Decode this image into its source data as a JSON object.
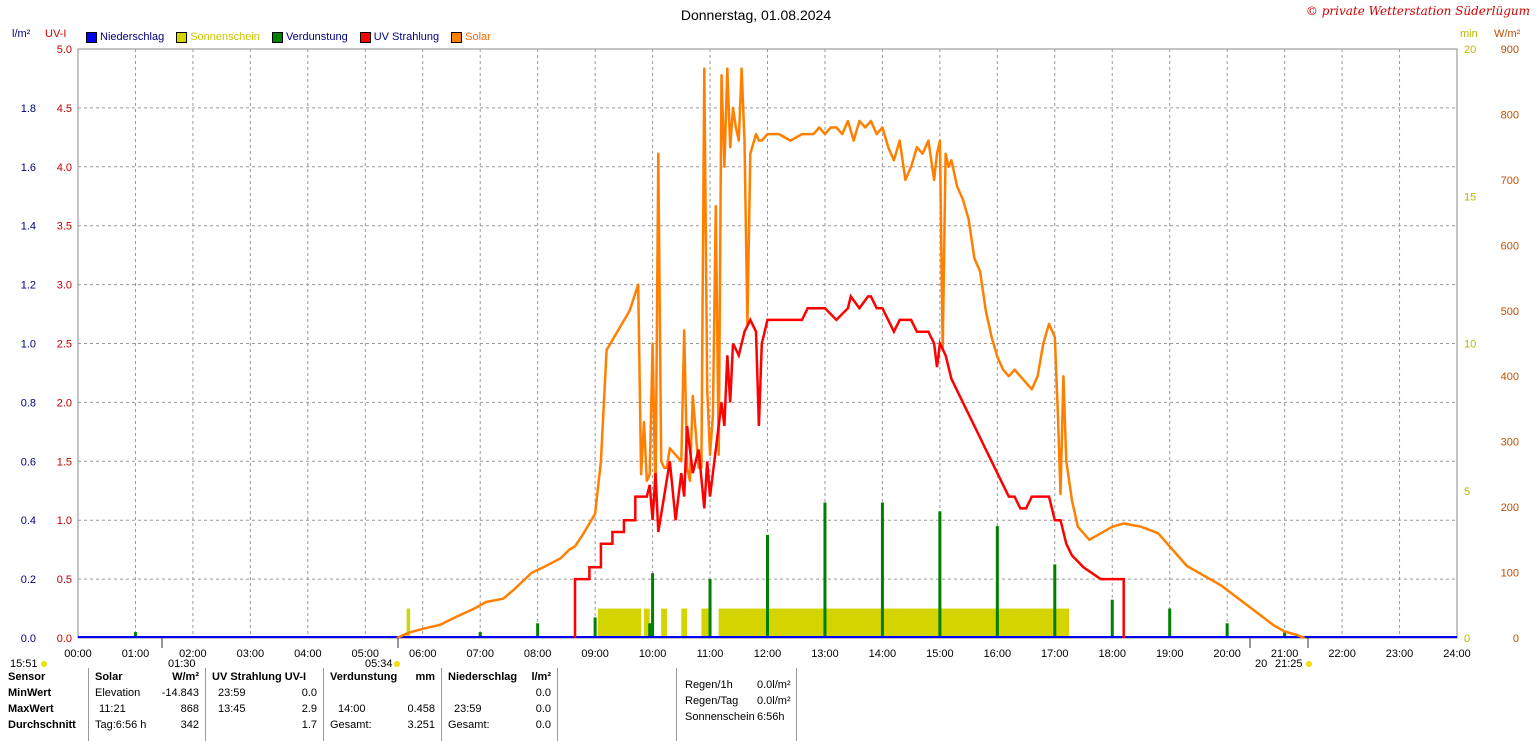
{
  "title": "Donnerstag, 01.08.2024",
  "copyright": "© private Wetterstation Süderlügum",
  "legend": [
    {
      "name": "Niederschlag",
      "color": "#0000ff",
      "text_color": "#000080"
    },
    {
      "name": "Sonnenschein",
      "color": "#d4d400",
      "text_color": "#c8c800"
    },
    {
      "name": "Verdunstung",
      "color": "#008000",
      "text_color": "#000080"
    },
    {
      "name": "UV Strahlung",
      "color": "#ff0000",
      "text_color": "#000080"
    },
    {
      "name": "Solar",
      "color": "#ff8000",
      "text_color": "#ff6600"
    }
  ],
  "axis_units": {
    "left1": "l/m²",
    "left2": "UV-I",
    "right1": "min",
    "right2": "W/m²"
  },
  "chart_data": {
    "type": "line",
    "x_unit": "hour of day",
    "xlim": [
      0,
      24
    ],
    "x_ticks": [
      "00:00",
      "01:00",
      "02:00",
      "03:00",
      "04:00",
      "05:00",
      "06:00",
      "07:00",
      "08:00",
      "09:00",
      "10:00",
      "11:00",
      "12:00",
      "13:00",
      "14:00",
      "15:00",
      "16:00",
      "17:00",
      "18:00",
      "19:00",
      "20:00",
      "21:00",
      "22:00",
      "23:00",
      "24:00"
    ],
    "y_axes": {
      "rain_lm2": {
        "ylim": [
          0,
          2.0
        ],
        "ticks": [
          "0.0",
          "0.2",
          "0.4",
          "0.6",
          "0.8",
          "1.0",
          "1.2",
          "1.4",
          "1.6",
          "1.8"
        ]
      },
      "uv_index": {
        "ylim": [
          0,
          5.0
        ],
        "ticks": [
          "0.0",
          "0.5",
          "1.0",
          "1.5",
          "2.0",
          "2.5",
          "3.0",
          "3.5",
          "4.0",
          "4.5",
          "5.0"
        ]
      },
      "sunshine_min": {
        "ylim": [
          0,
          20
        ],
        "ticks": [
          "0",
          "5",
          "10",
          "15",
          "20"
        ]
      },
      "solar_wm2": {
        "ylim": [
          0,
          900
        ],
        "ticks": [
          "0",
          "100",
          "200",
          "300",
          "400",
          "500",
          "600",
          "700",
          "800",
          "900"
        ]
      }
    },
    "series": [
      {
        "name": "Solar",
        "axis": "solar_wm2",
        "x": [
          5.55,
          5.75,
          6.0,
          6.3,
          6.6,
          6.9,
          7.1,
          7.4,
          7.6,
          7.9,
          8.1,
          8.4,
          8.55,
          8.65,
          8.8,
          8.9,
          9.0,
          9.05,
          9.1,
          9.2,
          9.4,
          9.6,
          9.75,
          9.8,
          9.85,
          9.9,
          9.95,
          10.0,
          10.05,
          10.1,
          10.15,
          10.2,
          10.25,
          10.3,
          10.4,
          10.5,
          10.55,
          10.6,
          10.65,
          10.7,
          10.8,
          10.85,
          10.9,
          10.95,
          11.0,
          11.05,
          11.1,
          11.15,
          11.2,
          11.25,
          11.3,
          11.35,
          11.4,
          11.45,
          11.5,
          11.55,
          11.6,
          11.65,
          11.7,
          11.8,
          11.85,
          11.9,
          12.0,
          12.2,
          12.4,
          12.6,
          12.8,
          12.9,
          13.0,
          13.1,
          13.2,
          13.3,
          13.4,
          13.5,
          13.6,
          13.7,
          13.8,
          13.9,
          14.0,
          14.1,
          14.2,
          14.3,
          14.4,
          14.5,
          14.6,
          14.7,
          14.8,
          14.9,
          14.95,
          15.0,
          15.05,
          15.1,
          15.15,
          15.2,
          15.3,
          15.4,
          15.5,
          15.6,
          15.7,
          15.8,
          15.9,
          16.0,
          16.1,
          16.2,
          16.3,
          16.4,
          16.5,
          16.6,
          16.7,
          16.8,
          16.9,
          17.0,
          17.05,
          17.1,
          17.15,
          17.2,
          17.3,
          17.4,
          17.6,
          17.8,
          18.0,
          18.2,
          18.5,
          18.8,
          19.0,
          19.3,
          19.6,
          19.9,
          20.2,
          20.5,
          20.8,
          21.0,
          21.2,
          21.35
        ],
        "values": [
          0,
          8,
          14,
          20,
          33,
          45,
          55,
          60,
          75,
          100,
          108,
          122,
          135,
          140,
          160,
          175,
          190,
          230,
          270,
          440,
          470,
          500,
          540,
          250,
          330,
          240,
          250,
          450,
          210,
          740,
          270,
          260,
          260,
          290,
          280,
          270,
          470,
          260,
          240,
          370,
          260,
          260,
          870,
          380,
          280,
          340,
          660,
          280,
          860,
          720,
          870,
          750,
          810,
          780,
          760,
          870,
          760,
          480,
          740,
          770,
          760,
          760,
          770,
          770,
          760,
          770,
          770,
          780,
          770,
          780,
          780,
          770,
          790,
          760,
          790,
          780,
          790,
          770,
          780,
          750,
          730,
          760,
          700,
          720,
          750,
          740,
          760,
          700,
          740,
          760,
          440,
          740,
          720,
          730,
          690,
          670,
          640,
          580,
          560,
          500,
          460,
          430,
          410,
          400,
          410,
          400,
          390,
          380,
          400,
          450,
          480,
          460,
          350,
          220,
          400,
          270,
          210,
          170,
          150,
          160,
          170,
          175,
          170,
          160,
          140,
          110,
          95,
          80,
          60,
          40,
          20,
          10,
          5,
          0
        ]
      },
      {
        "name": "UV Strahlung",
        "axis": "uv_index",
        "x": [
          8.65,
          8.65,
          8.9,
          8.9,
          9.1,
          9.1,
          9.3,
          9.3,
          9.5,
          9.5,
          9.7,
          9.7,
          9.9,
          9.95,
          10.0,
          10.05,
          10.1,
          10.2,
          10.3,
          10.4,
          10.5,
          10.55,
          10.6,
          10.7,
          10.8,
          10.9,
          10.95,
          11.0,
          11.1,
          11.2,
          11.25,
          11.3,
          11.35,
          11.4,
          11.5,
          11.6,
          11.7,
          11.8,
          11.85,
          11.9,
          12.0,
          12.2,
          12.6,
          12.7,
          13.0,
          13.2,
          13.4,
          13.45,
          13.6,
          13.75,
          13.8,
          13.9,
          14.0,
          14.1,
          14.2,
          14.3,
          14.5,
          14.6,
          14.7,
          14.8,
          14.9,
          14.95,
          15.0,
          15.1,
          15.2,
          15.3,
          15.4,
          15.5,
          15.6,
          15.7,
          15.8,
          15.9,
          16.0,
          16.1,
          16.2,
          16.3,
          16.4,
          16.5,
          16.6,
          16.7,
          16.8,
          16.9,
          17.0,
          17.1,
          17.2,
          17.3,
          17.5,
          17.8,
          18.0,
          18.2,
          18.2
        ],
        "values": [
          0,
          0.5,
          0.5,
          0.6,
          0.6,
          0.8,
          0.8,
          0.9,
          0.9,
          1.0,
          1.0,
          1.2,
          1.2,
          1.3,
          1.0,
          1.4,
          0.9,
          1.2,
          1.5,
          1.0,
          1.4,
          1.2,
          1.8,
          1.4,
          1.6,
          1.1,
          1.5,
          1.2,
          1.6,
          2.0,
          1.8,
          2.4,
          2.0,
          2.5,
          2.4,
          2.6,
          2.7,
          2.6,
          1.8,
          2.5,
          2.7,
          2.7,
          2.7,
          2.8,
          2.8,
          2.7,
          2.8,
          2.9,
          2.8,
          2.9,
          2.9,
          2.8,
          2.8,
          2.7,
          2.6,
          2.7,
          2.7,
          2.6,
          2.6,
          2.6,
          2.5,
          2.3,
          2.5,
          2.4,
          2.2,
          2.1,
          2.0,
          1.9,
          1.8,
          1.7,
          1.6,
          1.5,
          1.4,
          1.3,
          1.2,
          1.2,
          1.1,
          1.1,
          1.2,
          1.2,
          1.2,
          1.2,
          1.0,
          1.0,
          0.8,
          0.7,
          0.6,
          0.5,
          0.5,
          0.5,
          0
        ]
      },
      {
        "name": "Sonnenschein",
        "axis": "sunshine_min",
        "type": "bar",
        "periods": [
          [
            5.72,
            5.78
          ],
          [
            9.05,
            9.8
          ],
          [
            9.85,
            9.95
          ],
          [
            10.15,
            10.25
          ],
          [
            10.5,
            10.6
          ],
          [
            10.85,
            11.0
          ],
          [
            11.15,
            17.25
          ]
        ],
        "value": 1
      },
      {
        "name": "Verdunstung",
        "axis": "rain_lm2",
        "type": "bar",
        "x": [
          1.0,
          7.0,
          8.0,
          9.0,
          9.95,
          10.0,
          11.0,
          12.0,
          13.0,
          14.0,
          15.0,
          16.0,
          17.0,
          18.0,
          19.0,
          20.0,
          21.0
        ],
        "values": [
          0.02,
          0.02,
          0.05,
          0.07,
          0.05,
          0.22,
          0.2,
          0.35,
          0.46,
          0.46,
          0.43,
          0.38,
          0.25,
          0.13,
          0.1,
          0.05,
          0.02
        ]
      },
      {
        "name": "Niederschlag",
        "axis": "rain_lm2",
        "type": "bar",
        "values": [
          0
        ]
      }
    ],
    "markers": {
      "sunrise": "05:34",
      "sunset": "21:25",
      "left_time": "15:51",
      "mid_left_time": "01:30",
      "mid_right_time": "20"
    },
    "grid": true
  },
  "stats": {
    "sensor": {
      "label": "Sensor",
      "min": "MinWert",
      "max": "MaxWert",
      "avg": "Durchschnitt"
    },
    "solar": {
      "title": "Solar",
      "unit": "W/m²",
      "min_time": "Elevation",
      "min_val": "-14.843",
      "max_time": "11:21",
      "max_val": "868",
      "avg_time": "Tag:6:56 h",
      "avg_val": "342"
    },
    "uv": {
      "title": "UV Strahlung UV-I",
      "min_time": "23:59",
      "min_val": "0.0",
      "max_time": "13:45",
      "max_val": "2.9",
      "avg_val": "1.7"
    },
    "evap": {
      "title": "Verdunstung",
      "unit": "mm",
      "max_time": "14:00",
      "max_val": "0.458",
      "total_label": "Gesamt:",
      "total_val": "3.251"
    },
    "rain": {
      "title": "Niederschlag",
      "unit": "l/m²",
      "min_time": "23:59",
      "min_val": "0.0",
      "max_val": "0.0",
      "total_label": "Gesamt:",
      "total_val": "0.0"
    },
    "summary": [
      {
        "label": "Regen/1h",
        "value": "0.0l/m²"
      },
      {
        "label": "Regen/Tag",
        "value": "0.0l/m²"
      },
      {
        "label": "Sonnenschein",
        "value": "6:56h"
      }
    ]
  }
}
